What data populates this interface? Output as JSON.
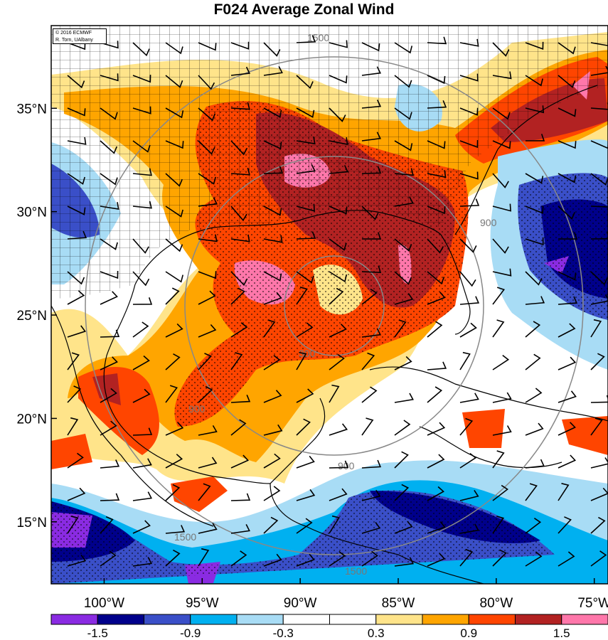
{
  "title": "F024 Average Zonal Wind",
  "credit": {
    "line1": "© 2016 ECMWF",
    "line2": "R. Torn, UAlbany"
  },
  "map": {
    "lat_ticks": [
      {
        "value": 35,
        "label": "35°N"
      },
      {
        "value": 30,
        "label": "30°N"
      },
      {
        "value": 25,
        "label": "25°N"
      },
      {
        "value": 20,
        "label": "20°N"
      },
      {
        "value": 15,
        "label": "15°N"
      }
    ],
    "lon_ticks": [
      {
        "value": -100,
        "label": "100°W"
      },
      {
        "value": -95,
        "label": "95°W"
      },
      {
        "value": -90,
        "label": "90°W"
      },
      {
        "value": -85,
        "label": "85°W"
      },
      {
        "value": -80,
        "label": "80°W"
      },
      {
        "value": -75,
        "label": "75°W"
      }
    ],
    "extent": {
      "lon_min": -102.7,
      "lon_max": -74.3,
      "lat_min": 12,
      "lat_max": 39
    },
    "distance_rings": [
      {
        "label": "300"
      },
      {
        "label": "900"
      },
      {
        "label": "1500"
      }
    ]
  },
  "colorbar": {
    "colors": [
      "#8a2be2",
      "#00008b",
      "#3a4fc8",
      "#00b0f0",
      "#a8dcf5",
      "#ffffff",
      "#ffffff",
      "#ffe48a",
      "#ffa500",
      "#ff4500",
      "#b22222",
      "#ff77aa"
    ],
    "labels": [
      "-1.5",
      "-0.9",
      "-0.3",
      "0.3",
      "0.9",
      "1.5"
    ]
  }
}
